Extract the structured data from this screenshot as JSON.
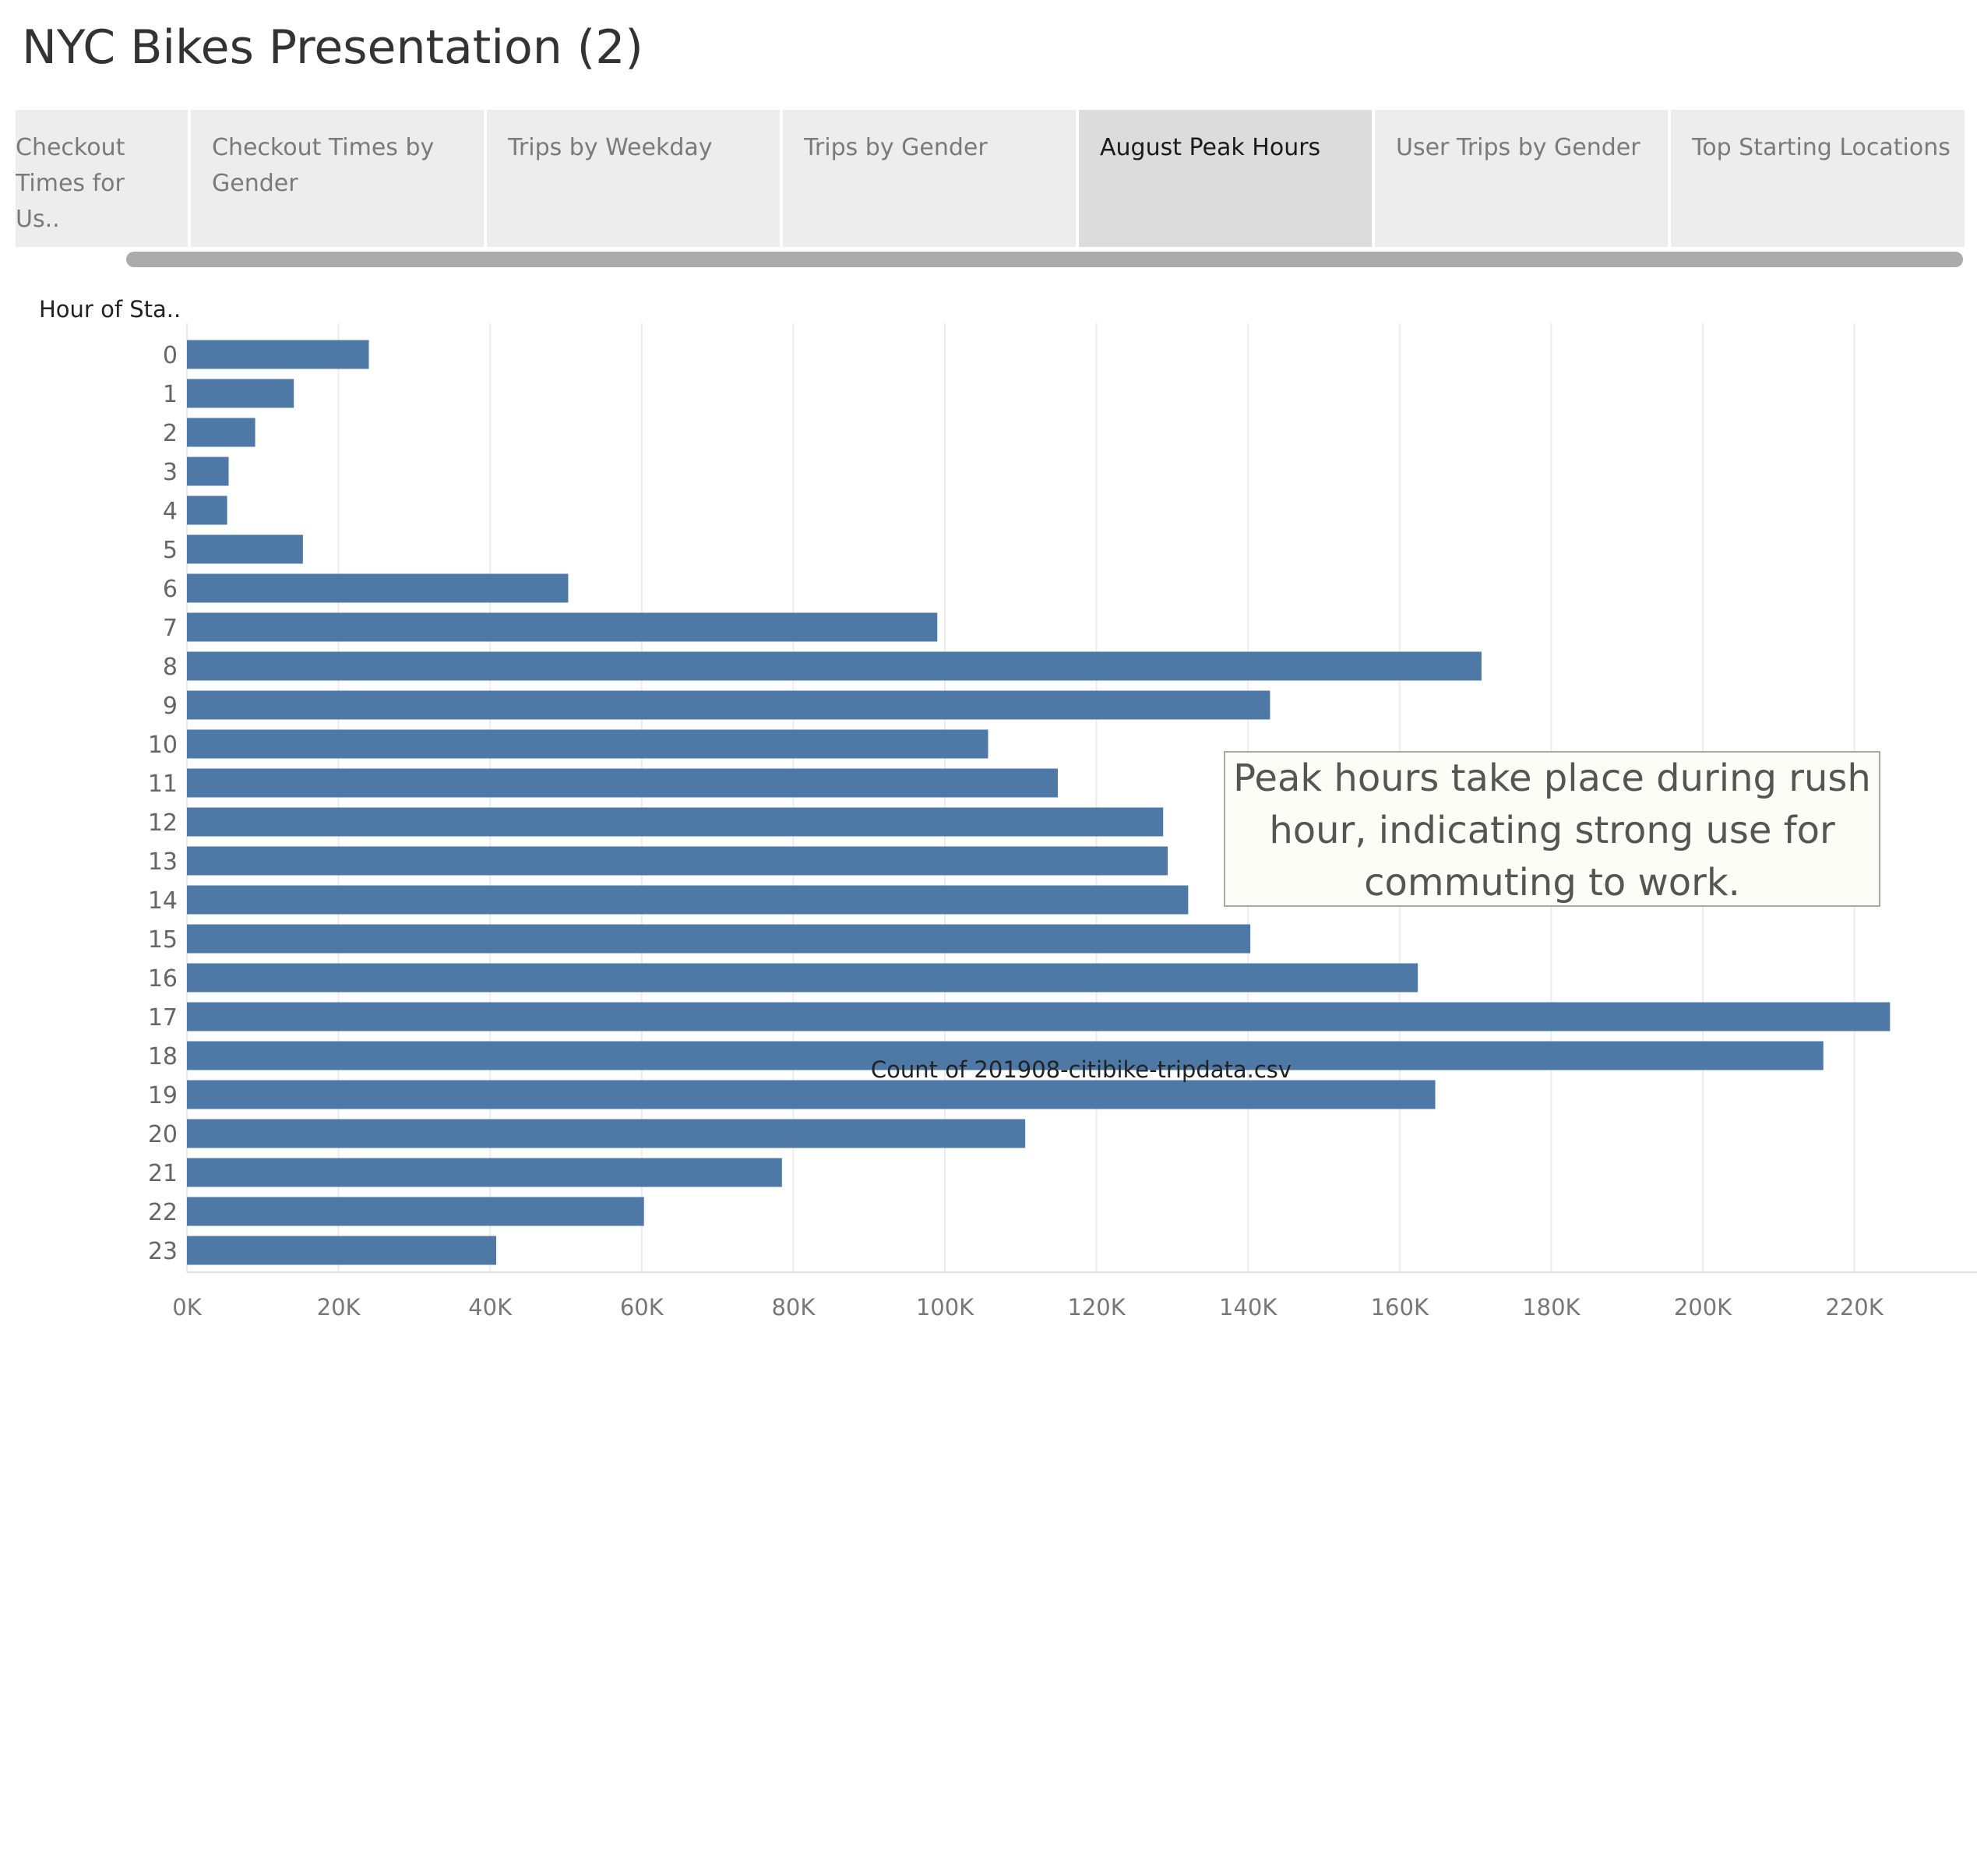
{
  "title": "NYC Bikes Presentation (2)",
  "tabs": [
    {
      "label": "Checkout Times for Us..",
      "active": false
    },
    {
      "label": "Checkout Times by Gender",
      "active": false
    },
    {
      "label": "Trips by Weekday",
      "active": false
    },
    {
      "label": "Trips by Gender",
      "active": false
    },
    {
      "label": "August Peak Hours",
      "active": true
    },
    {
      "label": "User Trips by Gender",
      "active": false
    },
    {
      "label": "Top Starting Locations",
      "active": false
    }
  ],
  "annotation": "Peak hours take place during rush hour, indicating strong use for commuting to work.",
  "colors": {
    "bar": "#4e79a7",
    "active_tab": "#dcdcdc",
    "tab": "#ededed"
  },
  "chart_data": {
    "type": "bar",
    "orientation": "horizontal",
    "ylabel": "Hour of Sta..",
    "xlabel": "Count of 201908-citibike-tripdata.csv",
    "categories": [
      "0",
      "1",
      "2",
      "3",
      "4",
      "5",
      "6",
      "7",
      "8",
      "9",
      "10",
      "11",
      "12",
      "13",
      "14",
      "15",
      "16",
      "17",
      "18",
      "19",
      "20",
      "21",
      "22",
      "23"
    ],
    "values": [
      24000,
      14100,
      9000,
      5500,
      5300,
      15300,
      50300,
      99000,
      170800,
      142900,
      105700,
      114900,
      128800,
      129400,
      132100,
      140300,
      162400,
      224700,
      215900,
      164700,
      110600,
      78500,
      60300,
      40800
    ],
    "xlim": [
      0,
      230000
    ],
    "xticks": [
      "0K",
      "20K",
      "40K",
      "60K",
      "80K",
      "100K",
      "120K",
      "140K",
      "160K",
      "180K",
      "200K",
      "220K"
    ],
    "grid": true
  }
}
